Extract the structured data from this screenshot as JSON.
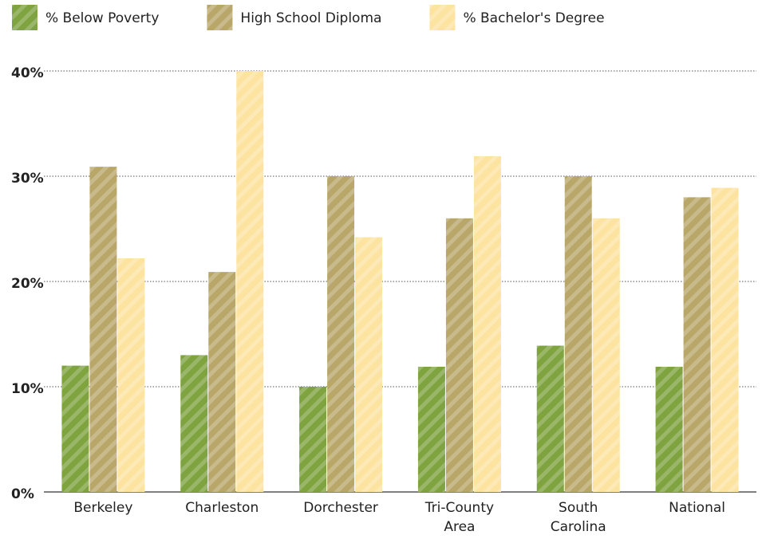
{
  "chart_data": {
    "type": "bar",
    "categories": [
      "Berkeley",
      "Charleston",
      "Dorchester",
      "Tri-County Area",
      "South Carolina",
      "National"
    ],
    "series": [
      {
        "name": "% Below Poverty",
        "color": "#7ea33f",
        "values": [
          12,
          13,
          10,
          11.9,
          13.9,
          11.9
        ]
      },
      {
        "name": "High School Diploma",
        "color": "#b9a76a",
        "values": [
          30.9,
          20.9,
          30,
          26,
          30,
          28
        ]
      },
      {
        "name": "% Bachelor's Degree",
        "color": "#fde3a0",
        "values": [
          22.2,
          40,
          24.2,
          31.9,
          26,
          28.9
        ]
      }
    ],
    "ylim": [
      0,
      40
    ],
    "yticks": [
      {
        "value": 0,
        "label": "0%"
      },
      {
        "value": 10,
        "label": "10%"
      },
      {
        "value": 20,
        "label": "20%"
      },
      {
        "value": 30,
        "label": "30%"
      },
      {
        "value": 40,
        "label": "40%"
      }
    ],
    "grid": true,
    "legend": "top"
  }
}
